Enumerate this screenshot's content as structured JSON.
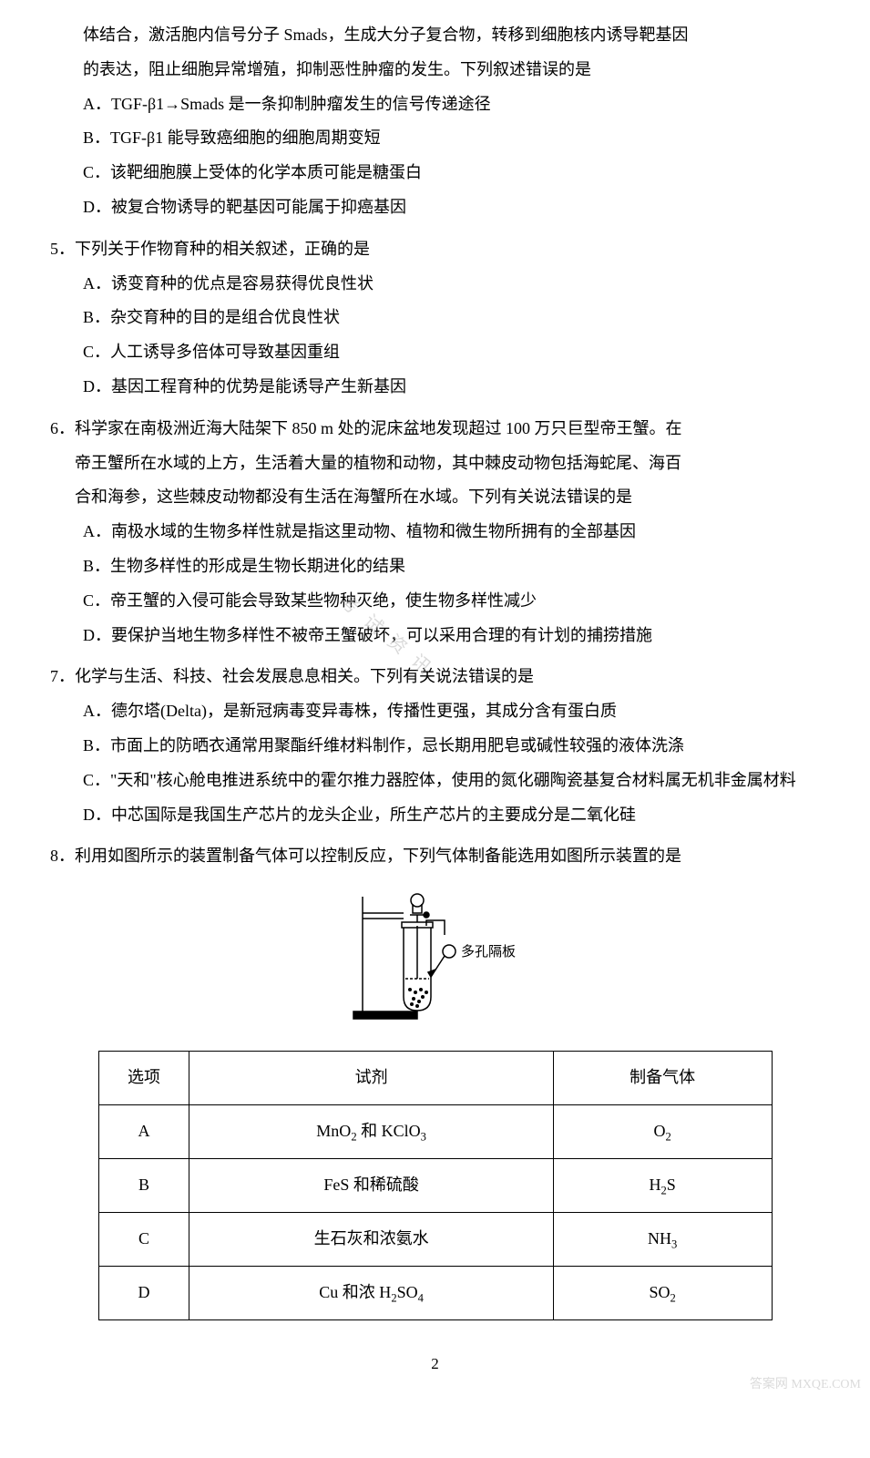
{
  "intro_para_lines": [
    "体结合，激活胞内信号分子 Smads，生成大分子复合物，转移到细胞核内诱导靶基因",
    "的表达，阻止细胞异常增殖，抑制恶性肿瘤的发生。下列叙述错误的是"
  ],
  "q4_options": [
    {
      "label": "A．",
      "text": "TGF-β1→Smads 是一条抑制肿瘤发生的信号传递途径"
    },
    {
      "label": "B．",
      "text": "TGF-β1 能导致癌细胞的细胞周期变短"
    },
    {
      "label": "C．",
      "text": "该靶细胞膜上受体的化学本质可能是糖蛋白"
    },
    {
      "label": "D．",
      "text": "被复合物诱导的靶基因可能属于抑癌基因"
    }
  ],
  "q5": {
    "num": "5．",
    "stem": "下列关于作物育种的相关叙述，正确的是",
    "options": [
      {
        "label": "A．",
        "text": "诱变育种的优点是容易获得优良性状"
      },
      {
        "label": "B．",
        "text": "杂交育种的目的是组合优良性状"
      },
      {
        "label": "C．",
        "text": "人工诱导多倍体可导致基因重组"
      },
      {
        "label": "D．",
        "text": "基因工程育种的优势是能诱导产生新基因"
      }
    ]
  },
  "q6": {
    "num": "6．",
    "stem_lines": [
      "科学家在南极洲近海大陆架下 850 m 处的泥床盆地发现超过 100 万只巨型帝王蟹。在",
      "帝王蟹所在水域的上方，生活着大量的植物和动物，其中棘皮动物包括海蛇尾、海百",
      "合和海参，这些棘皮动物都没有生活在海蟹所在水域。下列有关说法错误的是"
    ],
    "options": [
      {
        "label": "A．",
        "text": "南极水域的生物多样性就是指这里动物、植物和微生物所拥有的全部基因"
      },
      {
        "label": "B．",
        "text": "生物多样性的形成是生物长期进化的结果"
      },
      {
        "label": "C．",
        "text": "帝王蟹的入侵可能会导致某些物种灭绝，使生物多样性减少"
      },
      {
        "label": "D．",
        "text": "要保护当地生物多样性不被帝王蟹破坏，可以采用合理的有计划的捕捞措施"
      }
    ]
  },
  "q7": {
    "num": "7．",
    "stem": "化学与生活、科技、社会发展息息相关。下列有关说法错误的是",
    "options": [
      {
        "label": "A．",
        "text": "德尔塔(Delta)，是新冠病毒变异毒株，传播性更强，其成分含有蛋白质"
      },
      {
        "label": "B．",
        "text": "市面上的防晒衣通常用聚酯纤维材料制作，忌长期用肥皂或碱性较强的液体洗涤"
      },
      {
        "label": "C．",
        "text": "\"天和\"核心舱电推进系统中的霍尔推力器腔体，使用的氮化硼陶瓷基复合材料属无机非金属材料"
      },
      {
        "label": "D．",
        "text": "中芯国际是我国生产芯片的龙头企业，所生产芯片的主要成分是二氧化硅"
      }
    ]
  },
  "q8": {
    "num": "8．",
    "stem": "利用如图所示的装置制备气体可以控制反应，下列气体制备能选用如图所示装置的是",
    "diagram_label": "多孔隔板"
  },
  "table": {
    "headers": [
      "选项",
      "试剂",
      "制备气体"
    ],
    "rows": [
      {
        "option": "A",
        "reagent_html": "MnO<span class=\"sub\">2</span> 和 KClO<span class=\"sub\">3</span>",
        "gas_html": "O<span class=\"sub\">2</span>"
      },
      {
        "option": "B",
        "reagent_html": "FeS 和稀硫酸",
        "gas_html": "H<span class=\"sub\">2</span>S"
      },
      {
        "option": "C",
        "reagent_html": "生石灰和浓氨水",
        "gas_html": "NH<span class=\"sub\">3</span>"
      },
      {
        "option": "D",
        "reagent_html": "Cu 和浓 H<span class=\"sub\">2</span>SO<span class=\"sub\">4</span>",
        "gas_html": "SO<span class=\"sub\">2</span>"
      }
    ],
    "col_widths": {
      "option": 100,
      "reagent": 400,
      "gas": 240
    },
    "border_color": "#000000",
    "cell_padding": "10px 16px",
    "font_size": 18
  },
  "page_number": "2",
  "watermark_bottom": "答案网 MXQE.COM",
  "watermark_diag": "考试资讯",
  "diagram_style": {
    "stroke": "#000000",
    "stroke_width": 1.5,
    "fill": "none",
    "label_fontsize": 15,
    "label_color": "#000000"
  },
  "colors": {
    "background": "#ffffff",
    "text": "#000000"
  }
}
